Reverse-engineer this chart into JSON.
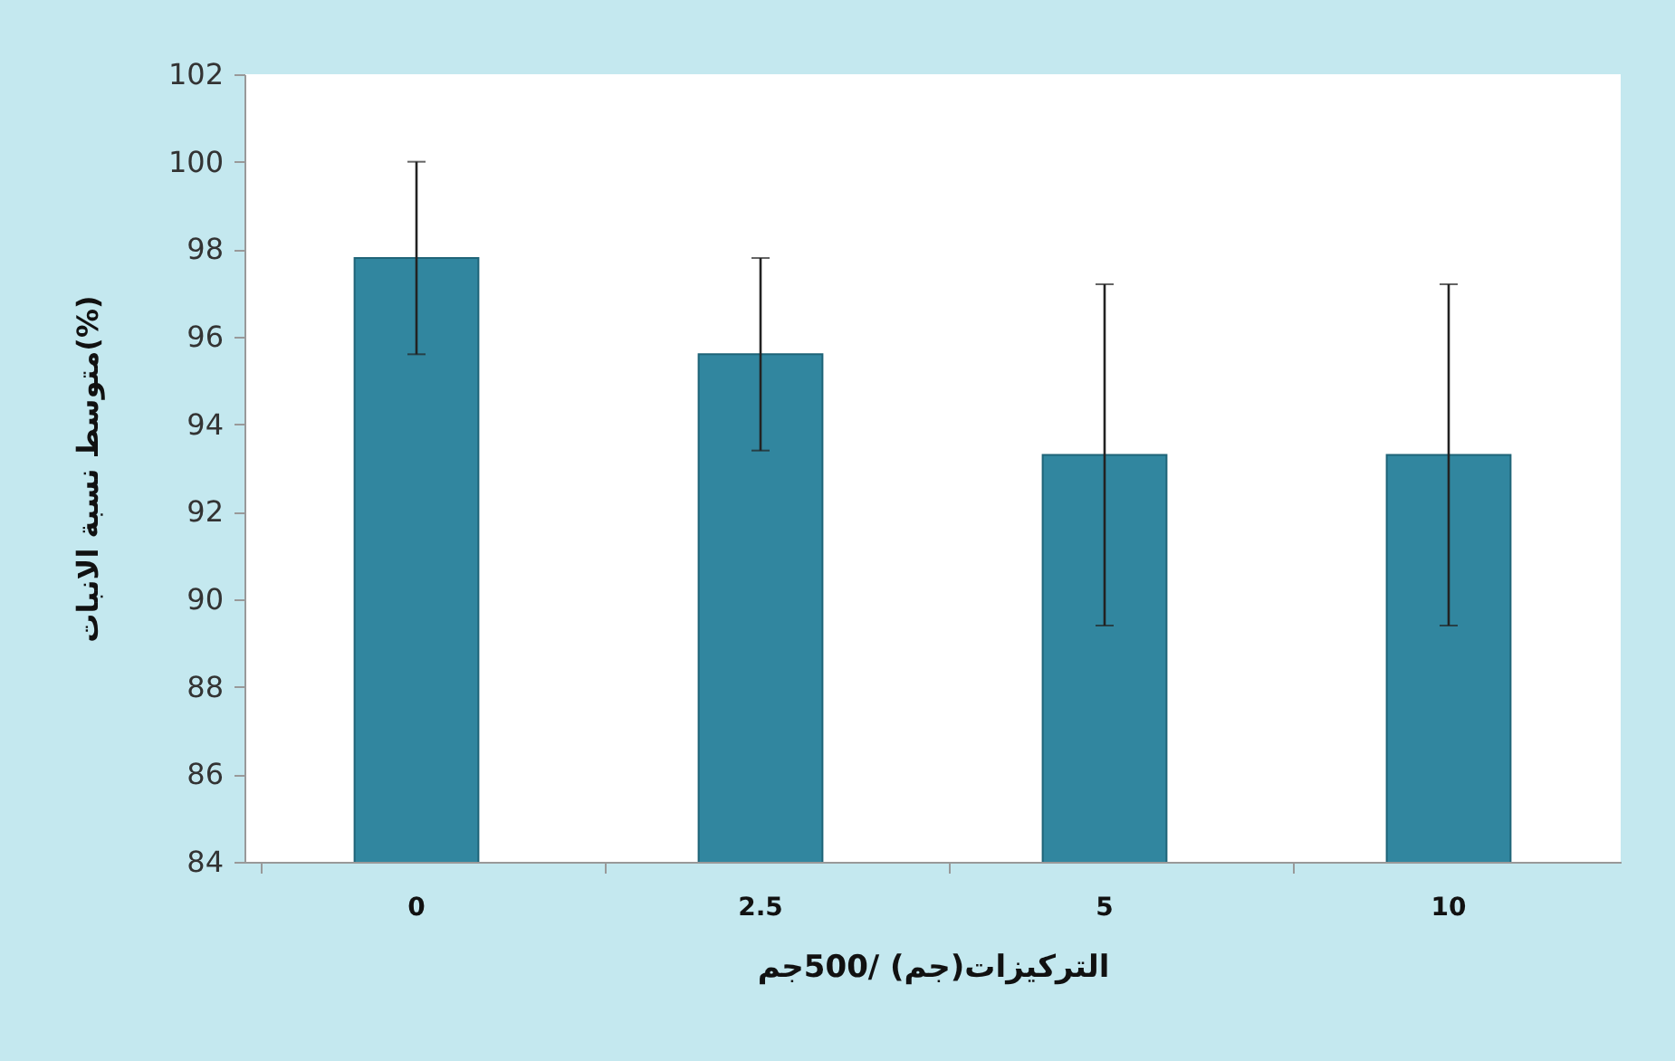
{
  "chart_data": {
    "type": "bar",
    "xlabel": "التركيزات(جم) /500جم",
    "ylabel": "متوسط نسبة الانبات(%)",
    "categories": [
      "0",
      "2.5",
      "5",
      "10"
    ],
    "values": [
      97.8,
      95.6,
      93.3,
      93.3
    ],
    "errors": [
      2.2,
      2.2,
      3.9,
      3.9
    ],
    "color": "#31869f",
    "ylim": [
      84,
      102
    ],
    "yticks": [
      84,
      86,
      88,
      90,
      92,
      94,
      96,
      98,
      100,
      102
    ],
    "grid": false
  }
}
